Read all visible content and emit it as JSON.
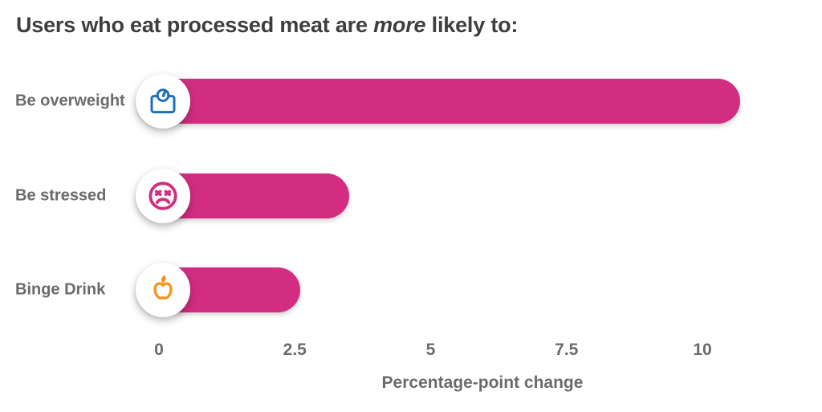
{
  "title": {
    "prefix": "Users who eat processed meat are ",
    "emphasis": "more",
    "suffix": " likely to:"
  },
  "chart_data": {
    "type": "bar",
    "orientation": "horizontal",
    "title": "Users who eat processed meat are more likely to:",
    "categories": [
      "Be overweight",
      "Be stressed",
      "Binge Drink"
    ],
    "values": [
      10.7,
      3.5,
      2.6
    ],
    "icons": [
      "weight-scale-icon",
      "stressed-face-icon",
      "apple-icon"
    ],
    "icon_colors": [
      "#1c6fb8",
      "#d22d80",
      "#f7941e"
    ],
    "bar_color": "#d22d80",
    "xlabel": "Percentage-point change",
    "xticks": [
      0,
      2.5,
      5,
      7.5,
      10
    ],
    "xtick_labels": [
      "0",
      "2.5",
      "5",
      "7.5",
      "10"
    ],
    "xlim": [
      0,
      10
    ],
    "grid": false,
    "legend": null
  },
  "colors": {
    "bar_magenta": "#d22d80",
    "scale_blue": "#1c6fb8",
    "apple_orange": "#f7941e",
    "title_text": "#3e3e3e",
    "label_text": "#6b6b6b"
  }
}
